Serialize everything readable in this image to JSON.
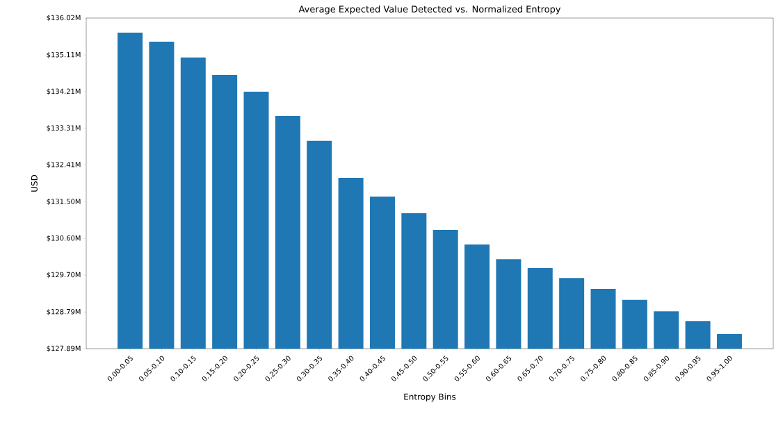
{
  "chart_data": {
    "type": "bar",
    "title": "Average Expected Value Detected vs. Normalized Entropy",
    "xlabel": "Entropy Bins",
    "ylabel": "USD",
    "categories": [
      "0.00-0.05",
      "0.05-0.10",
      "0.10-0.15",
      "0.15-0.20",
      "0.20-0.25",
      "0.25-0.30",
      "0.30-0.35",
      "0.35-0.40",
      "0.40-0.45",
      "0.45-0.50",
      "0.50-0.55",
      "0.55-0.60",
      "0.60-0.65",
      "0.65-0.70",
      "0.70-0.75",
      "0.75-0.80",
      "0.80-0.85",
      "0.85-0.90",
      "0.90-0.95",
      "0.95-1.00"
    ],
    "values": [
      135.66,
      135.44,
      135.05,
      134.62,
      134.21,
      133.61,
      133.0,
      132.09,
      131.63,
      131.22,
      130.81,
      130.45,
      130.09,
      129.87,
      129.63,
      129.36,
      129.09,
      128.81,
      128.57,
      128.25
    ],
    "color": "#1f77b4",
    "ylim": [
      127.89,
      136.02
    ],
    "yticks": [
      {
        "value": 127.89,
        "label": "$127.89M"
      },
      {
        "value": 128.79,
        "label": "$128.79M"
      },
      {
        "value": 129.7,
        "label": "$129.70M"
      },
      {
        "value": 130.6,
        "label": "$130.60M"
      },
      {
        "value": 131.5,
        "label": "$131.50M"
      },
      {
        "value": 132.41,
        "label": "$132.41M"
      },
      {
        "value": 133.31,
        "label": "$133.31M"
      },
      {
        "value": 134.21,
        "label": "$134.21M"
      },
      {
        "value": 135.11,
        "label": "$135.11M"
      },
      {
        "value": 136.02,
        "label": "$136.02M"
      }
    ],
    "grid": false
  }
}
